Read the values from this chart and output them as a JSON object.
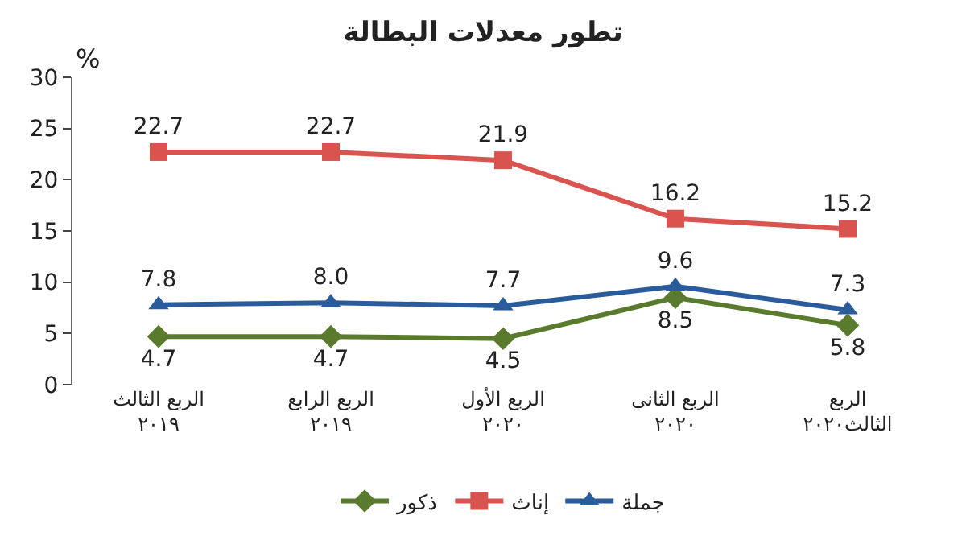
{
  "chart_data": {
    "type": "line",
    "title": "تطور معدلات البطالة",
    "ylabel": "%",
    "categories": [
      "الربع الثالث\n٢٠١٩",
      "الربع الرابع\n٢٠١٩",
      "الربع الأول\n٢٠٢٠",
      "الربع الثانى\n٢٠٢٠",
      "الربع\nالثالث٢٠٢٠"
    ],
    "series": [
      {
        "name": "ذكور",
        "color": "#5a7a2e",
        "marker": "diamond",
        "values": [
          4.7,
          4.7,
          4.5,
          8.5,
          5.8
        ],
        "value_labels": [
          "4.7",
          "4.7",
          "4.5",
          "8.5",
          "5.8"
        ]
      },
      {
        "name": "إناث",
        "color": "#d9534f",
        "marker": "square",
        "values": [
          22.7,
          22.7,
          21.9,
          16.2,
          15.2
        ],
        "value_labels": [
          "22.7",
          "22.7",
          "21.9",
          "16.2",
          "15.2"
        ]
      },
      {
        "name": "جملة",
        "color": "#2a5b9a",
        "marker": "triangle",
        "values": [
          7.8,
          8.0,
          7.7,
          9.6,
          7.3
        ],
        "value_labels": [
          "7.8",
          "8.0",
          "7.7",
          "9.6",
          "7.3"
        ]
      }
    ],
    "ylim": [
      0,
      30
    ],
    "yticks": [
      0,
      5,
      10,
      15,
      20,
      25,
      30
    ],
    "legend": "bottom"
  }
}
